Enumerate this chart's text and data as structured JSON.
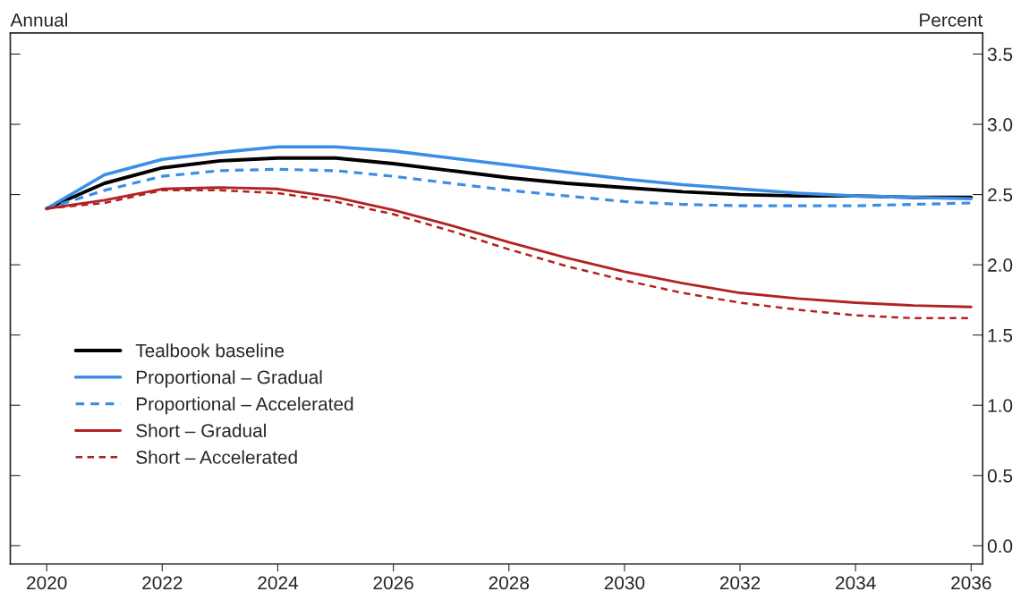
{
  "chart_data": {
    "type": "line",
    "ylabel": "Percent",
    "annotations": [
      "Annual"
    ],
    "x": [
      2020,
      2021,
      2022,
      2023,
      2024,
      2025,
      2026,
      2027,
      2028,
      2029,
      2030,
      2031,
      2032,
      2033,
      2034,
      2035,
      2036
    ],
    "series": [
      {
        "name": "Tealbook baseline",
        "color": "#000000",
        "line_style": "solid",
        "values": [
          2.4,
          2.58,
          2.69,
          2.74,
          2.76,
          2.76,
          2.72,
          2.67,
          2.62,
          2.58,
          2.55,
          2.52,
          2.5,
          2.49,
          2.49,
          2.48,
          2.48
        ]
      },
      {
        "name": "Proportional – Gradual",
        "color": "#3a8ee6",
        "line_style": "solid",
        "values": [
          2.4,
          2.64,
          2.75,
          2.8,
          2.84,
          2.84,
          2.81,
          2.76,
          2.71,
          2.66,
          2.61,
          2.57,
          2.54,
          2.51,
          2.49,
          2.48,
          2.47
        ]
      },
      {
        "name": "Proportional – Accelerated",
        "color": "#3a8ee6",
        "line_style": "dashed",
        "values": [
          2.4,
          2.53,
          2.63,
          2.67,
          2.68,
          2.67,
          2.63,
          2.58,
          2.53,
          2.49,
          2.45,
          2.43,
          2.42,
          2.42,
          2.42,
          2.43,
          2.44
        ]
      },
      {
        "name": "Short – Gradual",
        "color": "#b22222",
        "line_style": "solid",
        "values": [
          2.4,
          2.46,
          2.54,
          2.55,
          2.54,
          2.48,
          2.39,
          2.28,
          2.16,
          2.05,
          1.95,
          1.87,
          1.8,
          1.76,
          1.73,
          1.71,
          1.7
        ]
      },
      {
        "name": "Short – Accelerated",
        "color": "#b22222",
        "line_style": "dashed",
        "values": [
          2.4,
          2.44,
          2.53,
          2.53,
          2.51,
          2.45,
          2.36,
          2.24,
          2.11,
          1.99,
          1.89,
          1.8,
          1.73,
          1.68,
          1.64,
          1.62,
          1.62
        ]
      }
    ],
    "xlim": [
      2019.37,
      2036.2
    ],
    "xticks": [
      2020,
      2022,
      2024,
      2026,
      2028,
      2030,
      2032,
      2034,
      2036
    ],
    "ylim": [
      -0.13,
      3.65
    ],
    "yticks": [
      {
        "value": 0,
        "label": "0.0"
      },
      0.5,
      {
        "value": 1,
        "label": "1.0"
      },
      1.5,
      {
        "value": 2,
        "label": "2.0"
      },
      2.5,
      {
        "value": 3,
        "label": "3.0"
      },
      3.5
    ],
    "legend": "bottom left",
    "grid": false
  }
}
